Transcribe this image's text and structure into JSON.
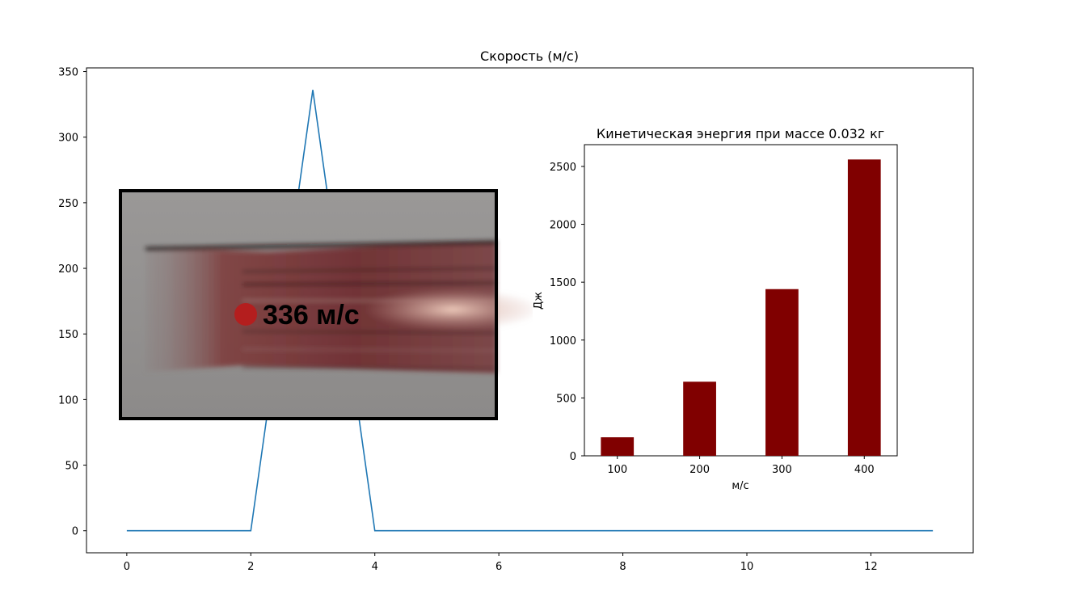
{
  "chart_data": [
    {
      "type": "line",
      "title": "Скорость (м/с)",
      "xlabel": "",
      "ylabel": "",
      "x": [
        0,
        1,
        2,
        3,
        4,
        5,
        6,
        7,
        8,
        9,
        10,
        11,
        12,
        13
      ],
      "series": [
        {
          "values": [
            0,
            0,
            0,
            336,
            0,
            0,
            0,
            0,
            0,
            0,
            0,
            0,
            0,
            0
          ],
          "color": "#1f77b4"
        }
      ],
      "xlim": [
        -0.65,
        13.65
      ],
      "ylim": [
        -16.8,
        352.8
      ],
      "xticks": [
        "0",
        "2",
        "4",
        "6",
        "8",
        "10",
        "12"
      ],
      "yticks": [
        "0",
        "50",
        "100",
        "150",
        "200",
        "250",
        "300",
        "350"
      ],
      "grid": false
    },
    {
      "type": "bar",
      "title": "Кинетическая энергия при массе 0.032 кг",
      "xlabel": "м/с",
      "ylabel": "Дж",
      "categories": [
        "100",
        "200",
        "300",
        "400"
      ],
      "values": [
        160,
        640,
        1440,
        2560
      ],
      "color": "#800000",
      "ylim": [
        0,
        2688
      ],
      "yticks": [
        "0",
        "500",
        "1000",
        "1500",
        "2000",
        "2500"
      ],
      "grid": false
    }
  ],
  "overlay": {
    "speed_label": "336 м/с",
    "label_color": "#1ee61e",
    "dot_color": "#b41e1e"
  }
}
